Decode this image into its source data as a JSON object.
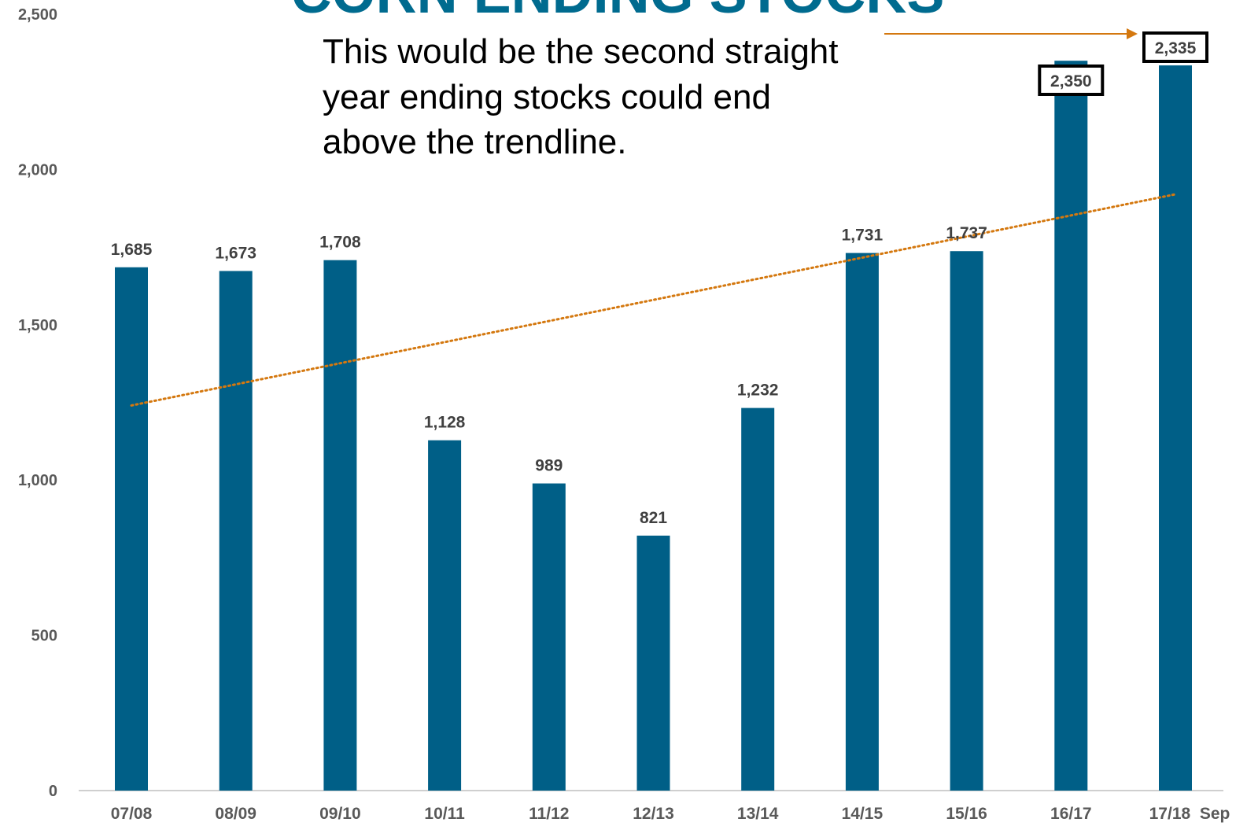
{
  "chart_data": {
    "type": "bar",
    "title": "CORN ENDING STOCKS",
    "categories": [
      "07/08",
      "08/09",
      "09/10",
      "10/11",
      "11/12",
      "12/13",
      "13/14",
      "14/15",
      "15/16",
      "16/17",
      "17/18  Sep"
    ],
    "values": [
      1685,
      1673,
      1708,
      1128,
      989,
      821,
      1232,
      1731,
      1737,
      2350,
      2335
    ],
    "data_labels": [
      "1,685",
      "1,673",
      "1,708",
      "1,128",
      "989",
      "821",
      "1,232",
      "1,731",
      "1,737",
      "2,350",
      "2,335"
    ],
    "boxed_labels": [
      9,
      10
    ],
    "ylim": [
      0,
      2500
    ],
    "yticks": [
      0,
      500,
      1000,
      1500,
      2000,
      2500
    ],
    "ytick_labels": [
      "0",
      "500",
      "1,000",
      "1,500",
      "2,000",
      "2,500"
    ],
    "trendline": {
      "style": "dotted",
      "start": 1240,
      "end": 1920
    },
    "annotation": {
      "lines": [
        "This would be the second straight",
        "year ending stocks could end",
        "above the trendline."
      ],
      "arrow_to": "17/18  Sep"
    },
    "grid": false,
    "legend": "none",
    "colors": {
      "bar": "#005F87",
      "trend": "#D4780F",
      "title": "#006B8F",
      "axis": "#BFBFBF"
    }
  }
}
